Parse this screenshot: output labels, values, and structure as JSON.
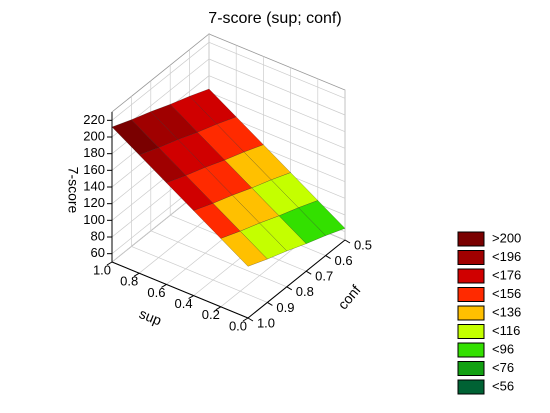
{
  "chart_data": {
    "type": "surface3d",
    "title": "7-score (sup; conf)",
    "xlabel": "sup",
    "ylabel": "conf",
    "zlabel": "7-score",
    "x": [
      0,
      0.2,
      0.4,
      0.6,
      0.8,
      1
    ],
    "y": [
      0.5,
      0.6,
      0.7,
      0.8,
      0.9,
      1
    ],
    "z": [
      [
        64,
        84,
        104,
        124,
        144,
        164
      ],
      [
        74,
        94,
        114,
        134,
        154,
        174
      ],
      [
        83,
        103,
        123,
        143,
        163,
        183
      ],
      [
        93,
        113,
        133,
        153,
        173,
        193
      ],
      [
        102,
        122,
        142,
        162,
        182,
        202
      ],
      [
        112,
        132,
        152,
        172,
        192,
        212
      ]
    ],
    "xlim": [
      0,
      1
    ],
    "ylim": [
      0.5,
      1
    ],
    "zlim": [
      50,
      230
    ],
    "xticks": [
      {
        "value": 0,
        "label": "0.0"
      },
      0.2,
      0.4,
      0.6,
      0.8,
      {
        "value": 1,
        "label": "1.0"
      }
    ],
    "yticks": [
      0.5,
      0.6,
      0.7,
      0.8,
      0.9,
      {
        "value": 1,
        "label": "1.0"
      }
    ],
    "zticks": [
      60,
      80,
      100,
      120,
      140,
      160,
      180,
      200,
      220
    ],
    "grid": true,
    "legend": [
      {
        "value": 200,
        "label": ">200",
        "color": "#7a0000"
      },
      {
        "value": 196,
        "label": "<196",
        "color": "#a00000"
      },
      {
        "value": 176,
        "label": "<176",
        "color": "#d00000"
      },
      {
        "value": 156,
        "label": "<156",
        "color": "#ff2a00"
      },
      {
        "value": 136,
        "label": "<136",
        "color": "#ffc000"
      },
      {
        "value": 116,
        "label": "<116",
        "color": "#c4ff00"
      },
      {
        "value": 96,
        "label": "<96",
        "color": "#33e000"
      },
      {
        "value": 76,
        "label": "<76",
        "color": "#12a012"
      },
      {
        "value": 56,
        "label": "<56",
        "color": "#006234"
      }
    ]
  }
}
